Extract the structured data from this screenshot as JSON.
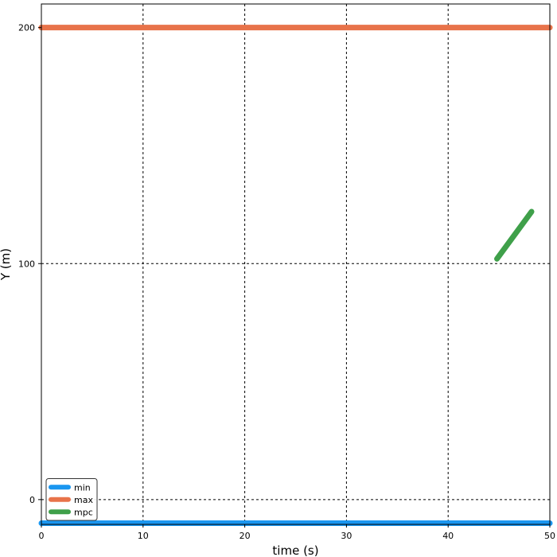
{
  "chart_data": {
    "type": "line",
    "title": "",
    "xlabel": "time (s)",
    "ylabel": "Y (m)",
    "xlim": [
      0,
      50
    ],
    "ylim": [
      -10.5,
      210
    ],
    "grid": true,
    "grid_style": "dotted",
    "legend_position": "lower-left",
    "x_ticks": [
      0,
      10,
      20,
      30,
      40,
      50
    ],
    "y_ticks": [
      0,
      100,
      200
    ],
    "series": [
      {
        "name": "min",
        "color": "#1a96f0",
        "x": [
          0,
          50
        ],
        "y": [
          -10,
          -10
        ]
      },
      {
        "name": "max",
        "color": "#e8734a",
        "x": [
          0,
          50
        ],
        "y": [
          200,
          200
        ]
      },
      {
        "name": "mpc",
        "color": "#3fa04a",
        "x": [
          44.8,
          48.2
        ],
        "y": [
          102,
          122
        ]
      }
    ]
  }
}
